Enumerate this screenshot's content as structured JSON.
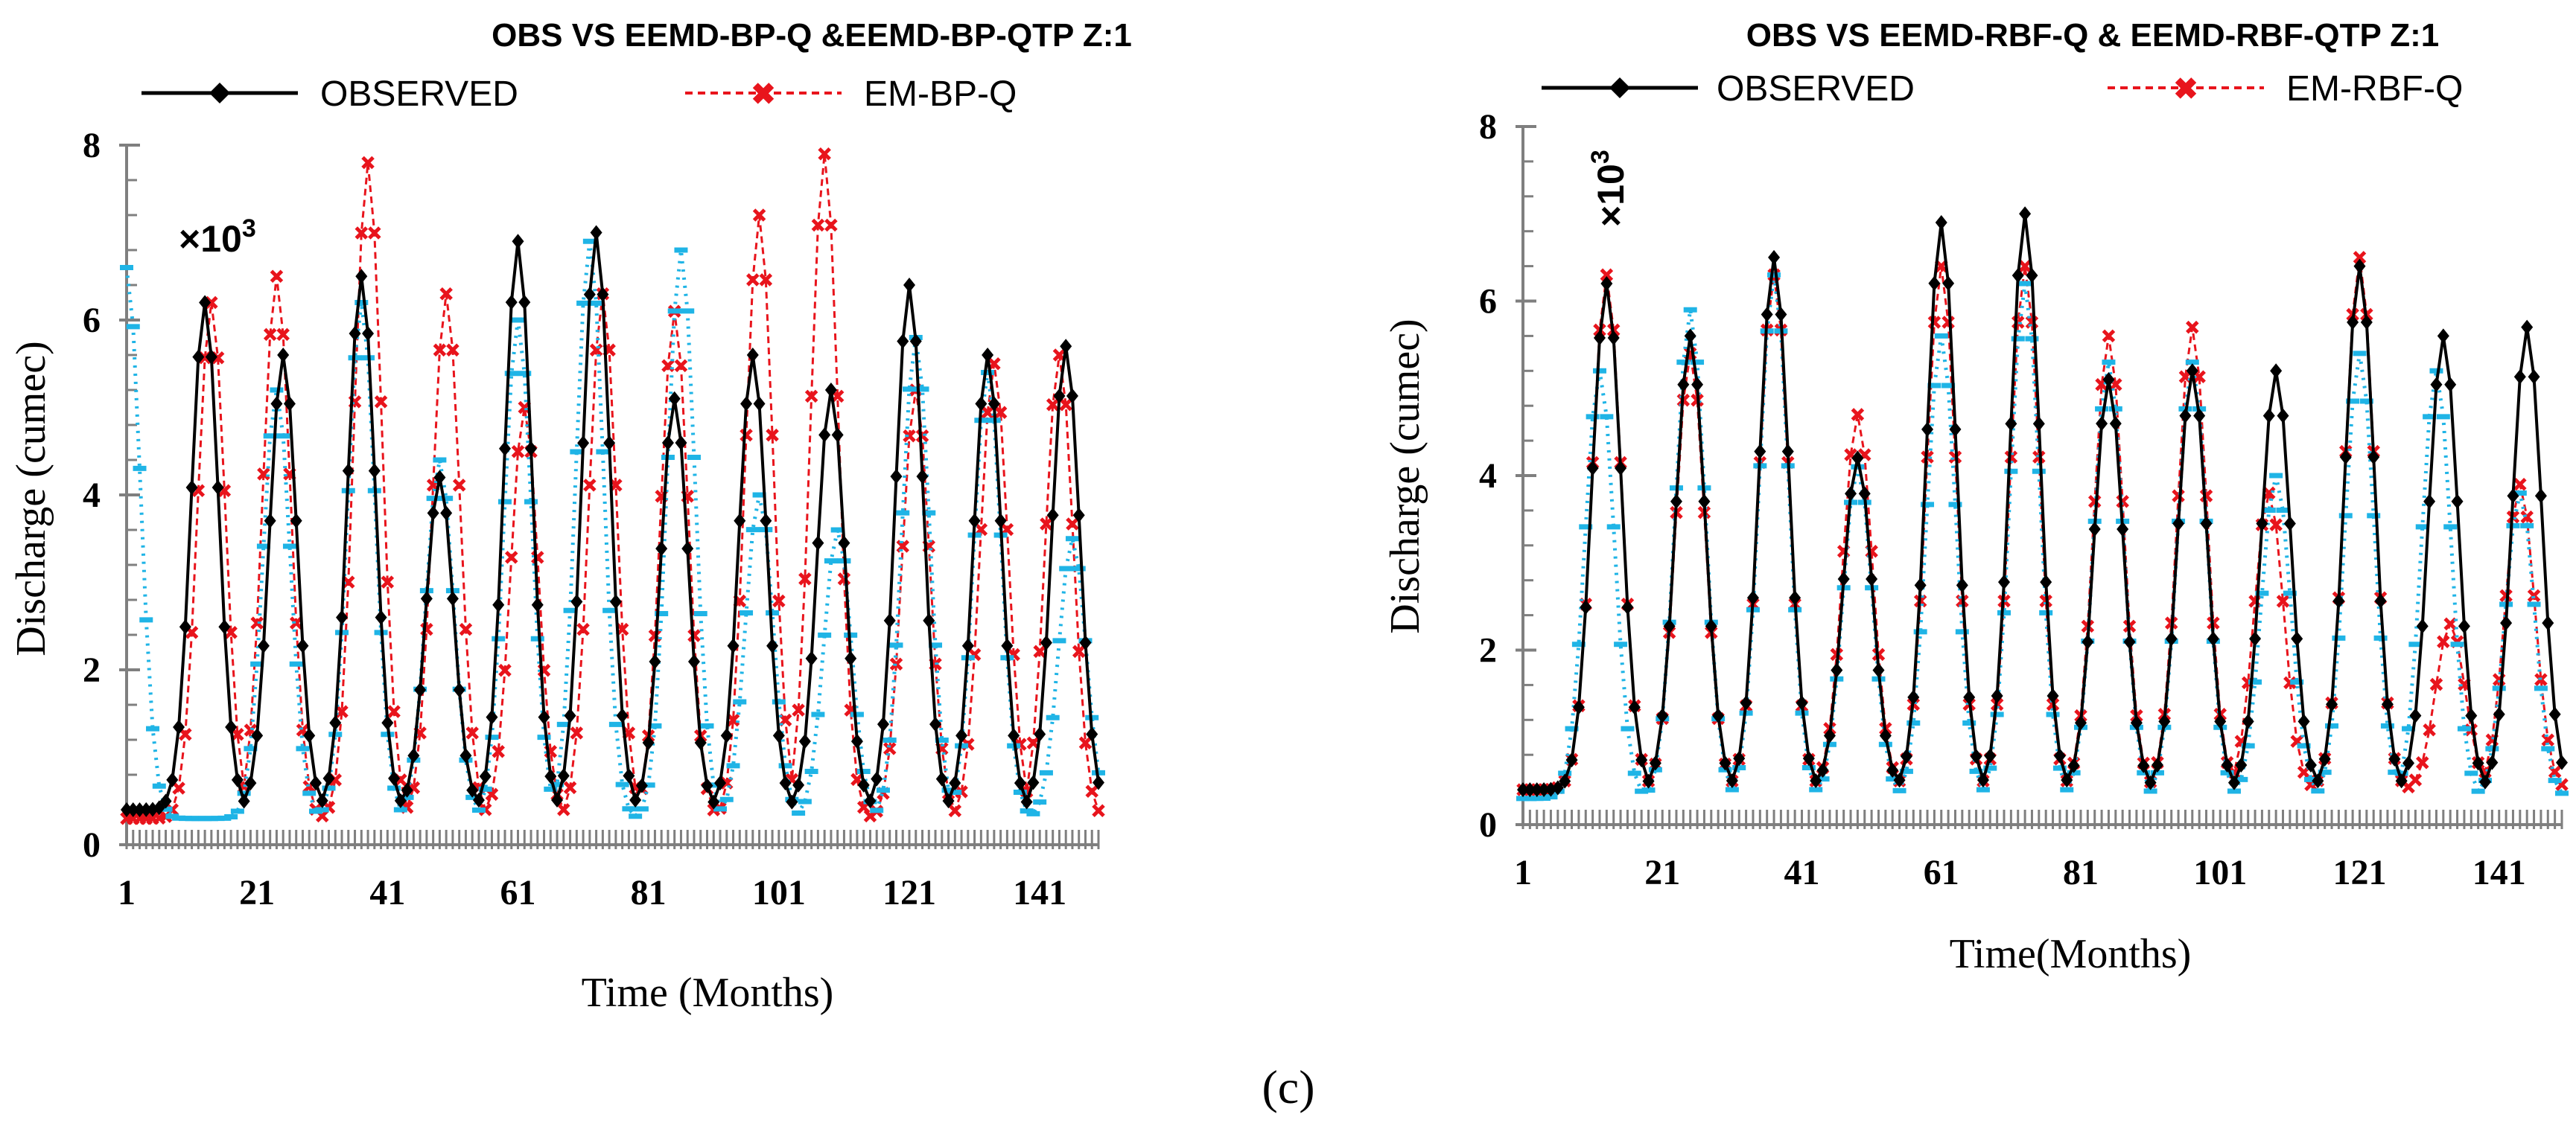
{
  "caption": "(c)",
  "colors": {
    "observed": "#000000",
    "model": "#e8141c",
    "qtp": "#1fb4e6",
    "axis": "#7f7f7f"
  },
  "chart_data": [
    {
      "type": "line",
      "title": "OBS VS EEMD-BP-Q &EEMD-BP-QTP Z:1",
      "xlabel": "Time (Months)",
      "ylabel": "Discharge (cumec)",
      "multiplier_prefix": "×10",
      "multiplier_exp": "3",
      "ylim": [
        0,
        8
      ],
      "xlim": [
        1,
        150
      ],
      "yticks": [
        "0",
        "2",
        "4",
        "6",
        "8"
      ],
      "xticks": [
        "1",
        "21",
        "41",
        "61",
        "81",
        "101",
        "121",
        "141"
      ],
      "legend": [
        "OBSERVED",
        "EM-BP-Q"
      ],
      "series": [
        {
          "name": "OBSERVED",
          "peaks": [
            6.2,
            5.6,
            6.5,
            4.2,
            6.9,
            7.0,
            5.1,
            5.6,
            5.2,
            6.4,
            5.6,
            5.7
          ],
          "peak_months": [
            13,
            25,
            37,
            49,
            61,
            73,
            85,
            97,
            109,
            121,
            133,
            145
          ],
          "base": 0.4
        },
        {
          "name": "EM-BP-Q",
          "peaks": [
            6.2,
            6.5,
            7.8,
            6.3,
            5.0,
            6.3,
            6.1,
            7.2,
            7.9,
            5.2,
            5.5,
            5.6
          ],
          "peak_months": [
            14,
            24,
            38,
            50,
            62,
            74,
            85,
            98,
            108,
            122,
            134,
            144
          ],
          "base": 0.3
        },
        {
          "name": "EM-BP-QTP",
          "peaks": [
            6.6,
            5.2,
            6.2,
            4.4,
            6.0,
            6.9,
            6.8,
            4.0,
            3.6,
            5.8,
            5.4,
            3.5
          ],
          "peak_months": [
            1,
            24,
            37,
            49,
            61,
            72,
            86,
            98,
            110,
            122,
            133,
            146
          ],
          "base": 0.3
        }
      ]
    },
    {
      "type": "line",
      "title": "OBS VS EEMD-RBF-Q & EEMD-RBF-QTP Z:1",
      "xlabel": "Time(Months)",
      "ylabel": "Discharge (cumec)",
      "multiplier_prefix": "×10",
      "multiplier_exp": "3",
      "ylim": [
        0,
        8
      ],
      "xlim": [
        1,
        150
      ],
      "yticks": [
        "0",
        "2",
        "4",
        "6",
        "8"
      ],
      "xticks": [
        "1",
        "21",
        "41",
        "61",
        "81",
        "101",
        "121",
        "141"
      ],
      "legend": [
        "OBSERVED",
        "EM-RBF-Q"
      ],
      "series": [
        {
          "name": "OBSERVED",
          "peaks": [
            6.2,
            5.6,
            6.5,
            4.2,
            6.9,
            7.0,
            5.1,
            5.2,
            5.2,
            6.4,
            5.6,
            5.7
          ],
          "peak_months": [
            13,
            25,
            37,
            49,
            61,
            73,
            85,
            97,
            109,
            121,
            133,
            145
          ],
          "base": 0.4
        },
        {
          "name": "EM-RBF-Q",
          "peaks": [
            6.3,
            5.4,
            6.3,
            4.7,
            6.4,
            6.4,
            5.6,
            5.7,
            3.8,
            6.5,
            2.3,
            3.9
          ],
          "peak_months": [
            13,
            25,
            37,
            49,
            61,
            73,
            85,
            97,
            108,
            121,
            134,
            144
          ],
          "base": 0.4
        },
        {
          "name": "EM-RBF-QTP",
          "peaks": [
            5.2,
            5.9,
            6.3,
            4.1,
            5.6,
            6.2,
            5.3,
            5.3,
            4.0,
            5.4,
            5.2,
            3.8
          ],
          "peak_months": [
            12,
            25,
            37,
            49,
            61,
            73,
            85,
            97,
            109,
            121,
            132,
            144
          ],
          "base": 0.3
        }
      ]
    }
  ]
}
